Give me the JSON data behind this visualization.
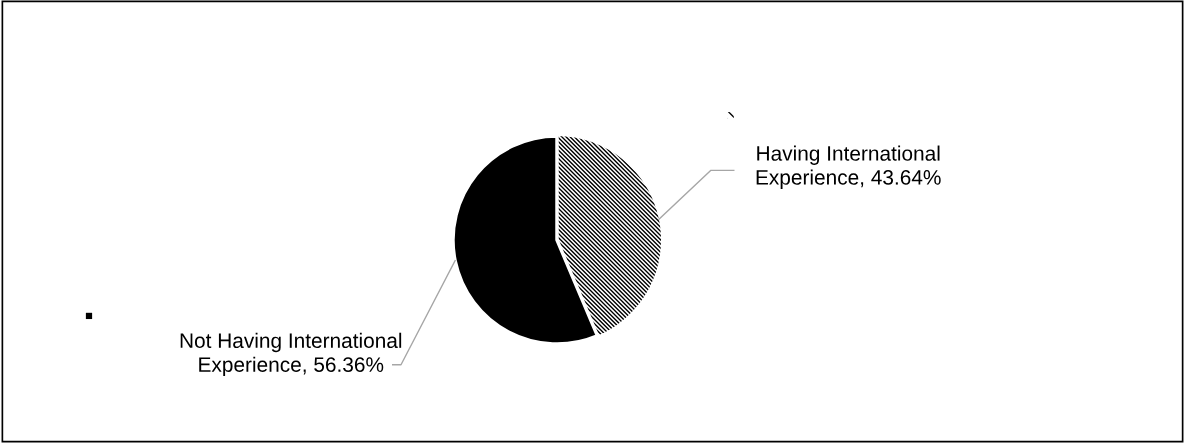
{
  "chart_data": {
    "type": "pie",
    "categories": [
      "Having International Experience",
      "Not Having International Experience"
    ],
    "values": [
      43.64,
      56.36
    ],
    "colors": [
      "#ffffff",
      "#000000"
    ],
    "value_labels": [
      "43.64%",
      "56.36%"
    ],
    "legend": false
  }
}
